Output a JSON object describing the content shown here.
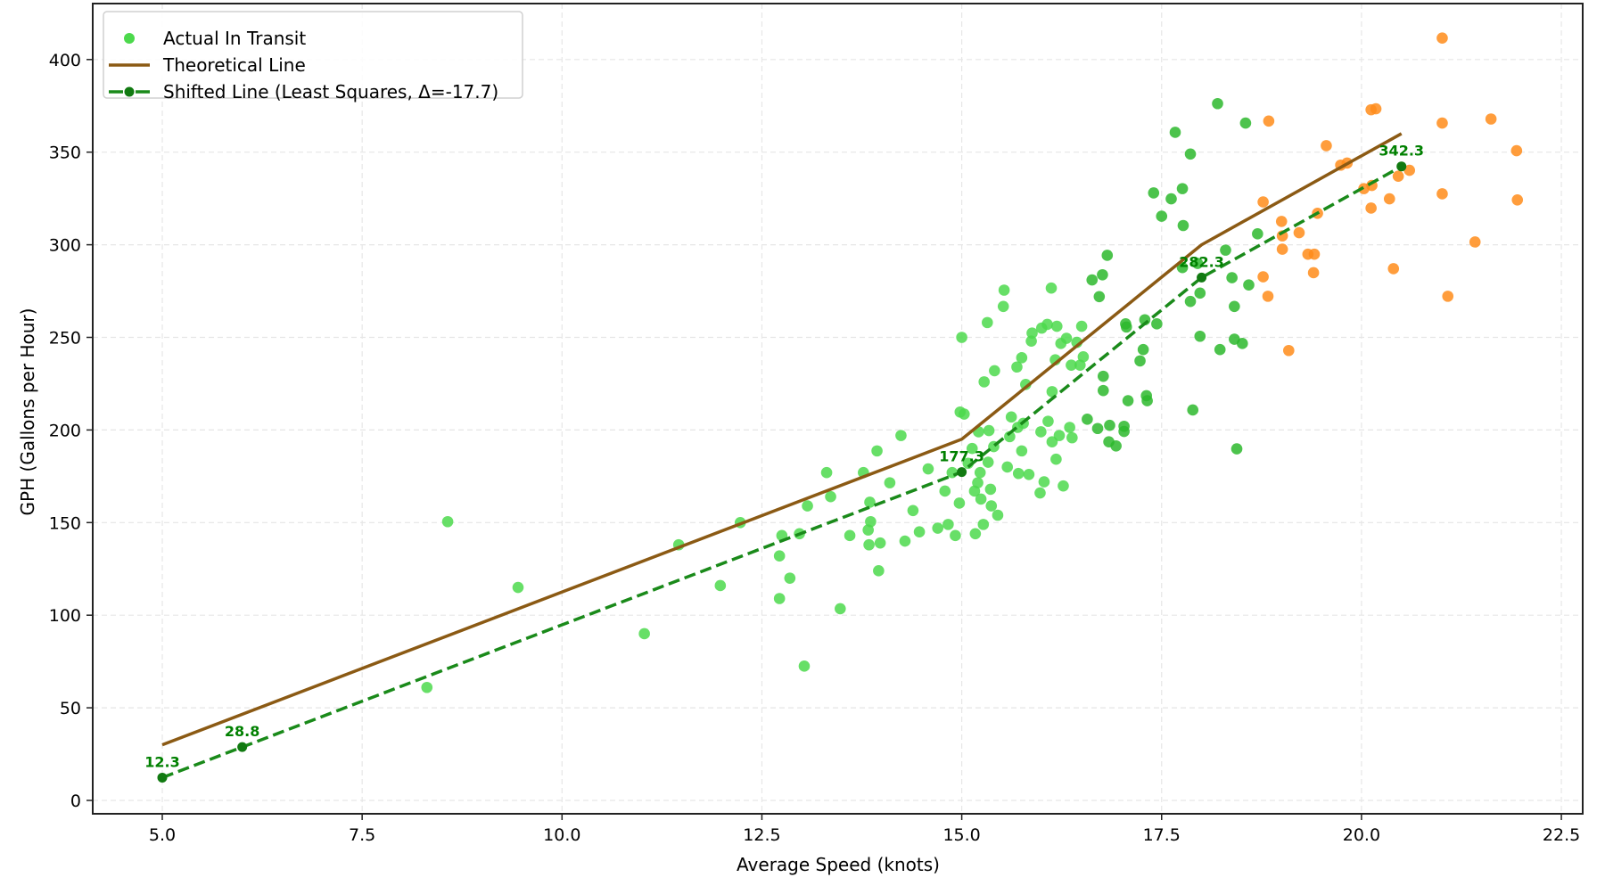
{
  "chart_data": {
    "type": "scatter",
    "title": "",
    "xlabel": "Average Speed (knots)",
    "ylabel": "GPH (Gallons per Hour)",
    "xlim": [
      4.13,
      22.77
    ],
    "ylim": [
      -7.2,
      430
    ],
    "xticks": [
      5.0,
      7.5,
      10.0,
      12.5,
      15.0,
      17.5,
      20.0,
      22.5
    ],
    "xtick_labels": [
      "5.0",
      "7.5",
      "10.0",
      "12.5",
      "15.0",
      "17.5",
      "20.0",
      "22.5"
    ],
    "yticks": [
      0,
      50,
      100,
      150,
      200,
      250,
      300,
      350,
      400
    ],
    "ytick_labels": [
      "0",
      "50",
      "100",
      "150",
      "200",
      "250",
      "300",
      "350",
      "400"
    ],
    "grid": true,
    "legend_position": "upper left",
    "legend": [
      {
        "label": "Actual In Transit",
        "type": "marker",
        "color": "#4cd94c"
      },
      {
        "label": "Theoretical Line",
        "type": "line",
        "color": "#8b5a14"
      },
      {
        "label": "Shifted Line (Least Squares, Δ=-17.7)",
        "type": "dashed-line-marker",
        "color": "#1a8a1a"
      }
    ],
    "series": [
      {
        "name": "Actual In Transit",
        "kind": "scatter",
        "colors": {
          "light": "#4cd94c",
          "dark": "#2db82d",
          "orange": "#ff8c1a"
        },
        "points_light": [
          [
            8.57,
            150.5
          ],
          [
            9.45,
            115
          ],
          [
            8.31,
            61
          ],
          [
            11.03,
            90
          ],
          [
            11.46,
            138
          ],
          [
            11.98,
            116
          ],
          [
            12.23,
            150
          ],
          [
            12.72,
            109
          ],
          [
            12.72,
            132
          ],
          [
            12.75,
            143
          ],
          [
            12.85,
            120
          ],
          [
            13.03,
            72.5
          ],
          [
            13.07,
            159
          ],
          [
            12.97,
            144
          ],
          [
            13.31,
            177
          ],
          [
            13.36,
            164
          ],
          [
            13.48,
            103.5
          ],
          [
            13.6,
            143
          ],
          [
            13.77,
            177
          ],
          [
            13.83,
            146
          ],
          [
            13.85,
            161
          ],
          [
            13.86,
            150.5
          ],
          [
            13.84,
            138
          ],
          [
            13.96,
            124
          ],
          [
            13.94,
            188.7
          ],
          [
            13.98,
            139
          ],
          [
            14.1,
            171.5
          ],
          [
            14.24,
            197
          ],
          [
            14.29,
            140
          ],
          [
            14.39,
            156.5
          ],
          [
            14.47,
            145
          ],
          [
            14.58,
            179
          ],
          [
            14.7,
            147
          ],
          [
            14.79,
            167
          ],
          [
            14.83,
            149
          ],
          [
            14.88,
            177
          ],
          [
            14.92,
            143
          ],
          [
            14.97,
            160.5
          ],
          [
            14.98,
            209.7
          ],
          [
            15.0,
            250
          ],
          [
            15.03,
            208.6
          ],
          [
            15.08,
            182
          ],
          [
            15.13,
            190
          ],
          [
            15.16,
            167
          ],
          [
            15.17,
            144
          ],
          [
            15.2,
            171.5
          ],
          [
            15.21,
            199
          ],
          [
            15.23,
            177
          ],
          [
            15.24,
            162.7
          ],
          [
            15.27,
            149
          ],
          [
            15.28,
            226
          ],
          [
            15.32,
            258
          ],
          [
            15.33,
            182.6
          ],
          [
            15.34,
            199.7
          ],
          [
            15.36,
            168
          ],
          [
            15.37,
            159
          ],
          [
            15.4,
            191
          ],
          [
            15.41,
            232
          ],
          [
            15.45,
            154
          ],
          [
            15.52,
            266.7
          ],
          [
            15.53,
            275.5
          ],
          [
            15.57,
            180
          ],
          [
            15.6,
            196.4
          ],
          [
            15.62,
            207
          ],
          [
            15.69,
            234
          ],
          [
            15.7,
            201.4
          ],
          [
            15.71,
            176.5
          ],
          [
            15.75,
            239
          ],
          [
            15.75,
            188.7
          ],
          [
            15.77,
            203.6
          ],
          [
            15.8,
            224.6
          ],
          [
            15.84,
            176
          ],
          [
            15.87,
            248
          ],
          [
            15.88,
            252.3
          ],
          [
            15.98,
            166
          ],
          [
            15.99,
            199
          ],
          [
            16.0,
            255
          ],
          [
            16.03,
            172
          ],
          [
            16.07,
            257
          ],
          [
            16.08,
            204.7
          ],
          [
            16.12,
            276.6
          ],
          [
            16.13,
            193.6
          ],
          [
            16.13,
            220.7
          ],
          [
            16.17,
            237.9
          ],
          [
            16.18,
            184.2
          ],
          [
            16.19,
            256
          ],
          [
            16.22,
            197
          ],
          [
            16.24,
            246.7
          ],
          [
            16.27,
            169.8
          ],
          [
            16.31,
            249.5
          ],
          [
            16.35,
            201.4
          ],
          [
            16.37,
            235
          ],
          [
            16.38,
            195.8
          ],
          [
            16.44,
            247.3
          ],
          [
            16.48,
            235
          ],
          [
            16.5,
            256
          ],
          [
            16.52,
            239.5
          ]
        ],
        "points_dark": [
          [
            16.57,
            205.8
          ],
          [
            16.63,
            281
          ],
          [
            16.7,
            200.8
          ],
          [
            16.72,
            272
          ],
          [
            16.76,
            283.8
          ],
          [
            16.77,
            221.3
          ],
          [
            16.77,
            229
          ],
          [
            16.82,
            294.3
          ],
          [
            16.85,
            202.5
          ],
          [
            16.84,
            193.6
          ],
          [
            16.93,
            191.4
          ],
          [
            17.03,
            202
          ],
          [
            17.03,
            199.2
          ],
          [
            17.05,
            257.3
          ],
          [
            17.06,
            255.6
          ],
          [
            17.08,
            215.8
          ],
          [
            17.23,
            237.3
          ],
          [
            17.27,
            243.4
          ],
          [
            17.29,
            259.5
          ],
          [
            17.31,
            218.5
          ],
          [
            17.32,
            215.8
          ],
          [
            17.4,
            328
          ],
          [
            17.44,
            257.3
          ],
          [
            17.5,
            315.4
          ],
          [
            17.62,
            324.8
          ],
          [
            17.67,
            360.7
          ],
          [
            17.76,
            330.3
          ],
          [
            17.77,
            310.4
          ],
          [
            17.76,
            287.7
          ],
          [
            17.86,
            349
          ],
          [
            17.86,
            269.4
          ],
          [
            17.89,
            210.8
          ],
          [
            17.95,
            289.9
          ],
          [
            17.98,
            250.6
          ],
          [
            17.98,
            273.9
          ],
          [
            18.2,
            376.2
          ],
          [
            18.23,
            243.4
          ],
          [
            18.3,
            297.1
          ],
          [
            18.38,
            282.2
          ],
          [
            18.41,
            266.7
          ],
          [
            18.41,
            249
          ],
          [
            18.44,
            189.8
          ],
          [
            18.51,
            246.7
          ],
          [
            18.55,
            365.7
          ],
          [
            18.59,
            278.3
          ],
          [
            18.7,
            305.9
          ]
        ],
        "points_orange": [
          [
            18.77,
            282.7
          ],
          [
            18.83,
            272.2
          ],
          [
            18.84,
            366.8
          ],
          [
            18.77,
            323.1
          ],
          [
            19.0,
            312.6
          ],
          [
            19.01,
            297.6
          ],
          [
            19.01,
            304.8
          ],
          [
            19.09,
            242.9
          ],
          [
            19.22,
            306.5
          ],
          [
            19.33,
            294.9
          ],
          [
            19.41,
            294.9
          ],
          [
            19.4,
            284.9
          ],
          [
            19.45,
            317
          ],
          [
            19.56,
            353.5
          ],
          [
            19.74,
            343
          ],
          [
            19.82,
            344.1
          ],
          [
            20.03,
            330.3
          ],
          [
            20.12,
            319.8
          ],
          [
            20.13,
            332
          ],
          [
            20.12,
            372.9
          ],
          [
            20.18,
            373.4
          ],
          [
            20.35,
            324.8
          ],
          [
            20.4,
            287.1
          ],
          [
            20.46,
            337
          ],
          [
            20.6,
            340.2
          ],
          [
            21.01,
            411.6
          ],
          [
            21.01,
            365.7
          ],
          [
            21.01,
            327.5
          ],
          [
            21.08,
            272.2
          ],
          [
            21.42,
            301.5
          ],
          [
            21.62,
            367.9
          ],
          [
            21.94,
            350.8
          ],
          [
            21.95,
            324.2
          ]
        ]
      },
      {
        "name": "Theoretical Line",
        "kind": "line",
        "color": "#8b5a14",
        "x": [
          5.0,
          15.0,
          18.0,
          20.5
        ],
        "y": [
          30,
          195,
          300,
          360
        ]
      },
      {
        "name": "Shifted Line (Least Squares, Δ=-17.7)",
        "kind": "dashed-line",
        "color": "#1a8a1a",
        "x": [
          5.0,
          6.0,
          15.0,
          18.0,
          20.5
        ],
        "y": [
          12.3,
          28.8,
          177.3,
          282.3,
          342.3
        ],
        "annotations": [
          "12.3",
          "28.8",
          "177.3",
          "282.3",
          "342.3"
        ]
      }
    ],
    "shift_delta": -17.7
  }
}
